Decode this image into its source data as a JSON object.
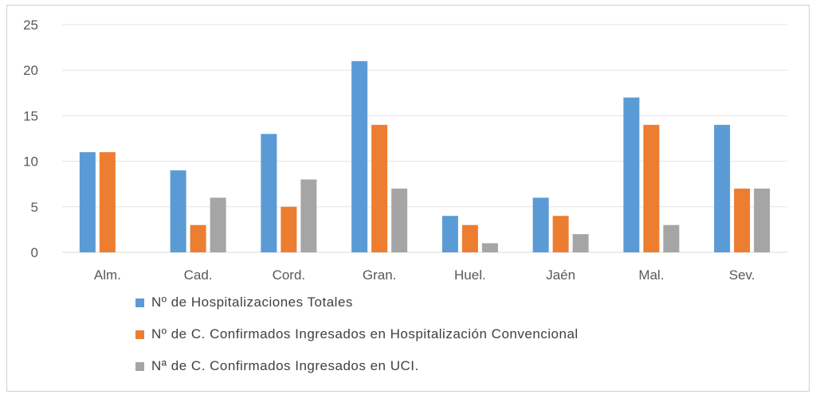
{
  "chart_data": {
    "type": "bar",
    "categories": [
      "Alm.",
      "Cad.",
      "Cord.",
      "Gran.",
      "Huel.",
      "Jaén",
      "Mal.",
      "Sev."
    ],
    "series": [
      {
        "name": "Nº de Hospitalizaciones Totales",
        "color": "#5b9bd5",
        "values": [
          11,
          9,
          13,
          21,
          4,
          6,
          17,
          14
        ]
      },
      {
        "name": "Nº de C. Confirmados Ingresados en Hospitalización Convencional",
        "color": "#ed7d31",
        "values": [
          11,
          3,
          5,
          14,
          3,
          4,
          14,
          7
        ]
      },
      {
        "name": "Nª de C. Confirmados Ingresados en UCI.",
        "color": "#a5a5a5",
        "values": [
          0,
          6,
          8,
          7,
          1,
          2,
          3,
          7
        ]
      }
    ],
    "ylim": [
      0,
      25
    ],
    "yticks": [
      0,
      5,
      10,
      15,
      20,
      25
    ],
    "grid": true,
    "legend_position": "bottom-left"
  }
}
